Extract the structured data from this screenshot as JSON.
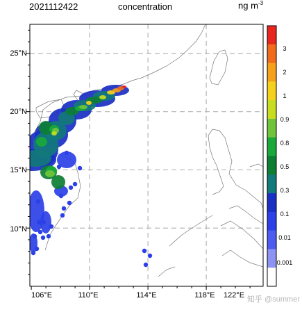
{
  "header": {
    "date": "2021112422",
    "title": "concentration",
    "unit": "ng m",
    "unit_exp": "-3"
  },
  "map": {
    "lon_labels": [
      "106°E",
      "110°E",
      "114°E",
      "118°E",
      "122°E"
    ],
    "lat_labels": [
      "10°N",
      "15°N",
      "20°N",
      "25°N"
    ],
    "lon_range": [
      105.9,
      121.9
    ],
    "lat_range": [
      5.0,
      27.5
    ],
    "grid_lons": [
      110,
      114,
      118
    ],
    "grid_lats": [
      10,
      15,
      20,
      25
    ],
    "grid_style": "dashed grey"
  },
  "colorbar": {
    "labels": [
      "3",
      "2",
      "1",
      "0.9",
      "0.8",
      "0.5",
      "0.3",
      "0.1",
      "0.01",
      "0.001"
    ],
    "colors": [
      "#e8261f",
      "#f26b1d",
      "#f6a11b",
      "#f4d21b",
      "#c7dd20",
      "#6fc43c",
      "#1aa83a",
      "#0c7f33",
      "#127a7a",
      "#1a2fc4",
      "#2b40e6",
      "#4c5bf0",
      "#8d93f2",
      "#ffffff"
    ]
  },
  "watermark": "知乎 @summer"
}
